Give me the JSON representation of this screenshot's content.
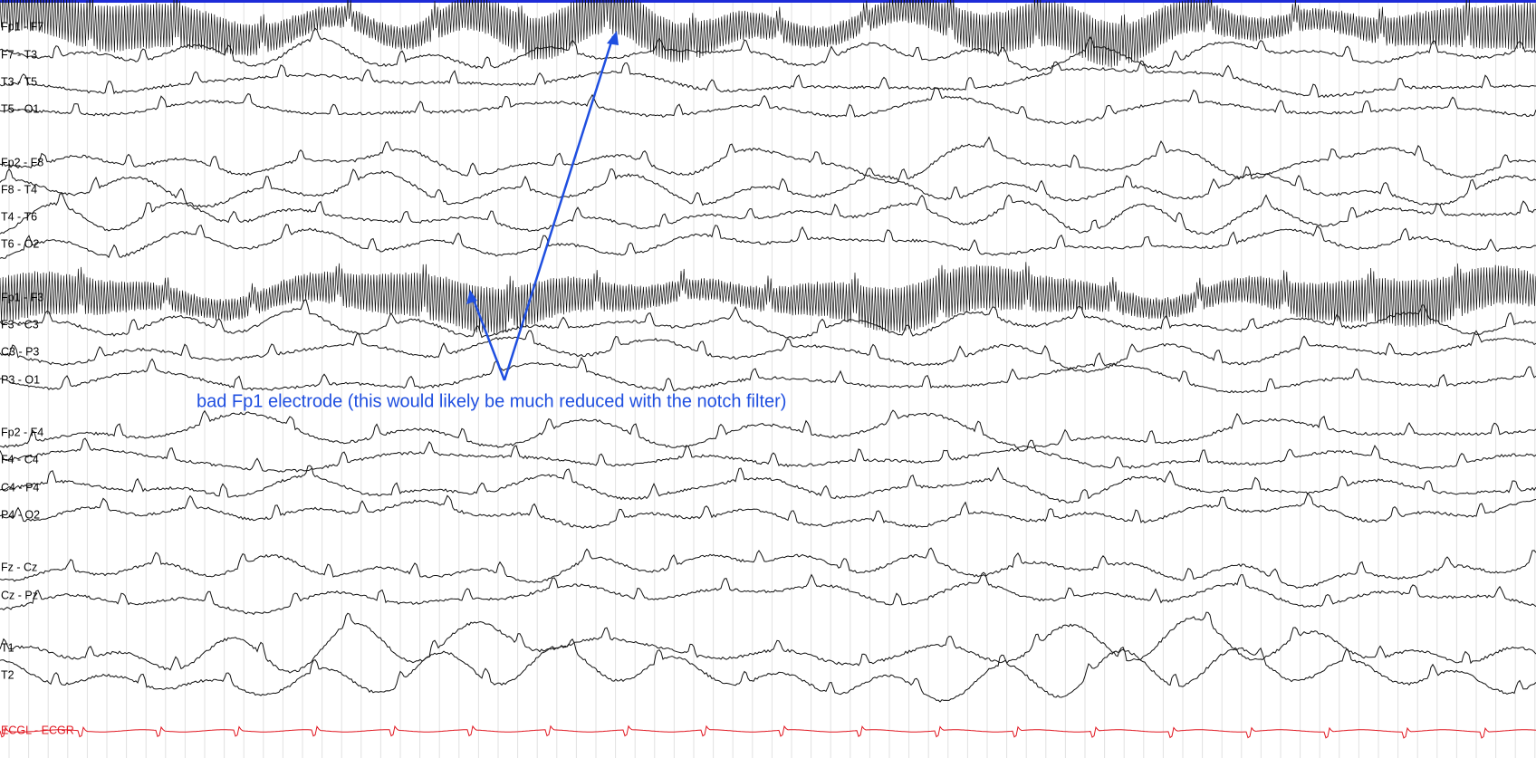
{
  "channels": [
    "Fp1 - F7",
    "F7 - T3",
    "T3 - T5",
    "T5 - O1",
    "Fp2 - F8",
    "F8 - T4",
    "T4 - T6",
    "T6 - O2",
    "Fp1 - F3",
    "F3 - C3",
    "C3 - P3",
    "P3 - O1",
    "Fp2 - F4",
    "F4 - C4",
    "C4 - P4",
    "P4 - O2",
    "Fz - Cz",
    "Cz - Pz",
    "T1",
    "T2",
    "ECGL - ECGR"
  ],
  "annotation": "bad Fp1 electrode (this would likely be much reduced with the notch filter)"
}
